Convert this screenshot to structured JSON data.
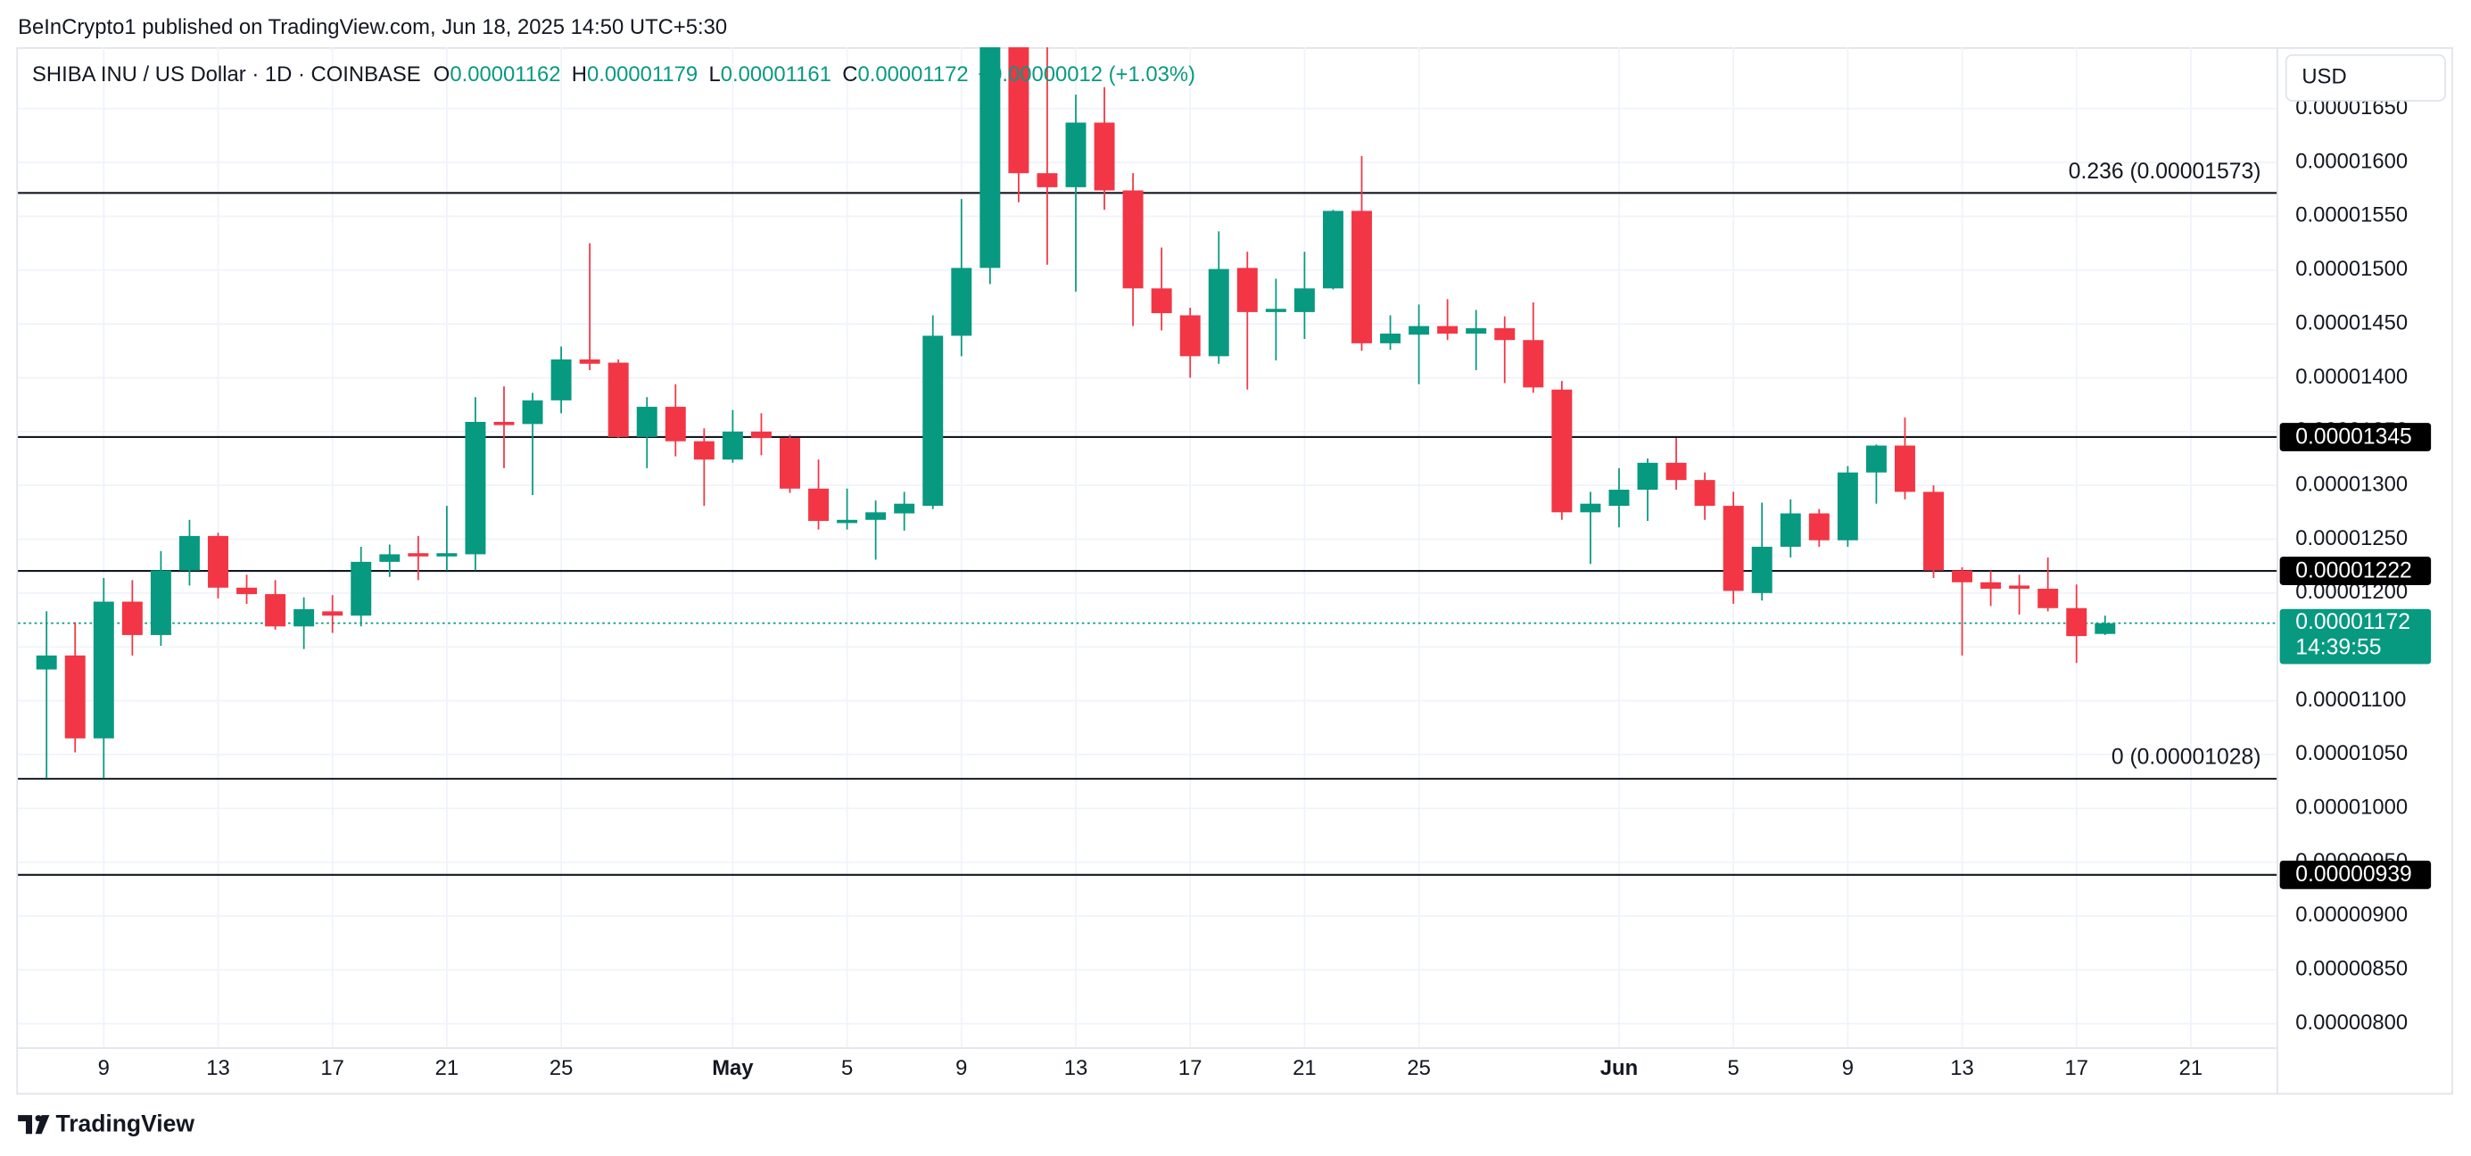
{
  "header": {
    "published": "BeInCrypto1 published on TradingView.com, Jun 18, 2025 14:50 UTC+5:30",
    "symbol": "SHIBA INU / US Dollar · 1D · COINBASE",
    "ohlc": [
      {
        "key": "O",
        "value": "0.00001162"
      },
      {
        "key": "H",
        "value": "0.00001179"
      },
      {
        "key": "L",
        "value": "0.00001161"
      },
      {
        "key": "C",
        "value": "0.00001172"
      }
    ],
    "change": "+0.00000012 (+1.03%)",
    "currency": "USD"
  },
  "footer": {
    "brand": "TradingView"
  },
  "chart_data": {
    "type": "candlestick",
    "up_color": "#089981",
    "down_color": "#f23645",
    "grid": true,
    "x": [
      "04-07",
      "04-08",
      "04-09",
      "04-10",
      "04-11",
      "04-12",
      "04-13",
      "04-14",
      "04-15",
      "04-16",
      "04-17",
      "04-18",
      "04-19",
      "04-20",
      "04-21",
      "04-22",
      "04-23",
      "04-24",
      "04-25",
      "04-26",
      "04-27",
      "04-28",
      "04-29",
      "04-30",
      "05-01",
      "05-02",
      "05-03",
      "05-04",
      "05-05",
      "05-06",
      "05-07",
      "05-08",
      "05-09",
      "05-10",
      "05-11",
      "05-12",
      "05-13",
      "05-14",
      "05-15",
      "05-16",
      "05-17",
      "05-18",
      "05-19",
      "05-20",
      "05-21",
      "05-22",
      "05-23",
      "05-24",
      "05-25",
      "05-26",
      "05-27",
      "05-28",
      "05-29",
      "05-30",
      "05-31",
      "06-01",
      "06-02",
      "06-03",
      "06-04",
      "06-05",
      "06-06",
      "06-07",
      "06-08",
      "06-09",
      "06-10",
      "06-11",
      "06-12",
      "06-13",
      "06-14",
      "06-15",
      "06-16",
      "06-17",
      "06-18"
    ],
    "open": [
      1.129e-05,
      1.142e-05,
      1.065e-05,
      1.192e-05,
      1.161e-05,
      1.221e-05,
      1.253e-05,
      1.205e-05,
      1.199e-05,
      1.169e-05,
      1.183e-05,
      1.179e-05,
      1.229e-05,
      1.237e-05,
      1.234e-05,
      1.236e-05,
      1.359e-05,
      1.357e-05,
      1.379e-05,
      1.417e-05,
      1.414e-05,
      1.345e-05,
      1.373e-05,
      1.341e-05,
      1.324e-05,
      1.35e-05,
      1.344e-05,
      1.297e-05,
      1.265e-05,
      1.268e-05,
      1.274e-05,
      1.281e-05,
      1.439e-05,
      1.502e-05,
      1.71e-05,
      1.59e-05,
      1.577e-05,
      1.637e-05,
      1.574e-05,
      1.483e-05,
      1.458e-05,
      1.42e-05,
      1.502e-05,
      1.461e-05,
      1.461e-05,
      1.483e-05,
      1.555e-05,
      1.432e-05,
      1.44e-05,
      1.448e-05,
      1.441e-05,
      1.446e-05,
      1.435e-05,
      1.389e-05,
      1.275e-05,
      1.281e-05,
      1.296e-05,
      1.321e-05,
      1.305e-05,
      1.281e-05,
      1.2e-05,
      1.243e-05,
      1.274e-05,
      1.249e-05,
      1.312e-05,
      1.337e-05,
      1.294e-05,
      1.221e-05,
      1.21e-05,
      1.207e-05,
      1.204e-05,
      1.186e-05,
      1.162e-05
    ],
    "high": [
      1.183e-05,
      1.173e-05,
      1.214e-05,
      1.212e-05,
      1.239e-05,
      1.268e-05,
      1.256e-05,
      1.217e-05,
      1.212e-05,
      1.196e-05,
      1.198e-05,
      1.243e-05,
      1.245e-05,
      1.253e-05,
      1.281e-05,
      1.382e-05,
      1.392e-05,
      1.386e-05,
      1.429e-05,
      1.525e-05,
      1.417e-05,
      1.382e-05,
      1.394e-05,
      1.353e-05,
      1.37e-05,
      1.367e-05,
      1.347e-05,
      1.324e-05,
      1.297e-05,
      1.286e-05,
      1.294e-05,
      1.458e-05,
      1.566e-05,
      1.74e-05,
      1.74e-05,
      1.72e-05,
      1.663e-05,
      1.67e-05,
      1.59e-05,
      1.521e-05,
      1.465e-05,
      1.536e-05,
      1.517e-05,
      1.492e-05,
      1.517e-05,
      1.556e-05,
      1.606e-05,
      1.458e-05,
      1.468e-05,
      1.473e-05,
      1.463e-05,
      1.457e-05,
      1.47e-05,
      1.397e-05,
      1.294e-05,
      1.316e-05,
      1.325e-05,
      1.344e-05,
      1.312e-05,
      1.294e-05,
      1.284e-05,
      1.287e-05,
      1.278e-05,
      1.318e-05,
      1.338e-05,
      1.363e-05,
      1.3e-05,
      1.224e-05,
      1.221e-05,
      1.217e-05,
      1.233e-05,
      1.208e-05,
      1.179e-05
    ],
    "low": [
      1.028e-05,
      1.052e-05,
      1.028e-05,
      1.142e-05,
      1.151e-05,
      1.207e-05,
      1.195e-05,
      1.19e-05,
      1.166e-05,
      1.148e-05,
      1.163e-05,
      1.169e-05,
      1.215e-05,
      1.212e-05,
      1.221e-05,
      1.221e-05,
      1.316e-05,
      1.291e-05,
      1.367e-05,
      1.407e-05,
      1.344e-05,
      1.316e-05,
      1.327e-05,
      1.281e-05,
      1.321e-05,
      1.328e-05,
      1.293e-05,
      1.259e-05,
      1.259e-05,
      1.231e-05,
      1.258e-05,
      1.278e-05,
      1.42e-05,
      1.487e-05,
      1.563e-05,
      1.505e-05,
      1.48e-05,
      1.556e-05,
      1.448e-05,
      1.444e-05,
      1.4e-05,
      1.413e-05,
      1.389e-05,
      1.416e-05,
      1.436e-05,
      1.482e-05,
      1.425e-05,
      1.426e-05,
      1.394e-05,
      1.435e-05,
      1.407e-05,
      1.395e-05,
      1.386e-05,
      1.268e-05,
      1.227e-05,
      1.261e-05,
      1.267e-05,
      1.296e-05,
      1.268e-05,
      1.19e-05,
      1.193e-05,
      1.233e-05,
      1.243e-05,
      1.243e-05,
      1.283e-05,
      1.287e-05,
      1.214e-05,
      1.142e-05,
      1.188e-05,
      1.18e-05,
      1.183e-05,
      1.135e-05,
      1.161e-05
    ],
    "close": [
      1.142e-05,
      1.065e-05,
      1.192e-05,
      1.161e-05,
      1.221e-05,
      1.253e-05,
      1.205e-05,
      1.199e-05,
      1.169e-05,
      1.185e-05,
      1.179e-05,
      1.229e-05,
      1.236e-05,
      1.234e-05,
      1.237e-05,
      1.359e-05,
      1.356e-05,
      1.379e-05,
      1.417e-05,
      1.413e-05,
      1.345e-05,
      1.373e-05,
      1.341e-05,
      1.324e-05,
      1.35e-05,
      1.344e-05,
      1.297e-05,
      1.267e-05,
      1.268e-05,
      1.275e-05,
      1.283e-05,
      1.439e-05,
      1.502e-05,
      1.71e-05,
      1.59e-05,
      1.577e-05,
      1.637e-05,
      1.574e-05,
      1.483e-05,
      1.46e-05,
      1.42e-05,
      1.501e-05,
      1.461e-05,
      1.464e-05,
      1.483e-05,
      1.555e-05,
      1.432e-05,
      1.441e-05,
      1.448e-05,
      1.441e-05,
      1.446e-05,
      1.435e-05,
      1.391e-05,
      1.275e-05,
      1.283e-05,
      1.296e-05,
      1.321e-05,
      1.305e-05,
      1.281e-05,
      1.202e-05,
      1.243e-05,
      1.274e-05,
      1.249e-05,
      1.312e-05,
      1.337e-05,
      1.294e-05,
      1.221e-05,
      1.21e-05,
      1.204e-05,
      1.204e-05,
      1.186e-05,
      1.16e-05,
      1.172e-05
    ],
    "xlim": [
      "04-06",
      "06-24"
    ],
    "xticks": [
      {
        "value": "04-09",
        "label": "9"
      },
      {
        "value": "04-13",
        "label": "13"
      },
      {
        "value": "04-17",
        "label": "17"
      },
      {
        "value": "04-21",
        "label": "21"
      },
      {
        "value": "04-25",
        "label": "25"
      },
      {
        "value": "05-01",
        "label": "May"
      },
      {
        "value": "05-05",
        "label": "5"
      },
      {
        "value": "05-09",
        "label": "9"
      },
      {
        "value": "05-13",
        "label": "13"
      },
      {
        "value": "05-17",
        "label": "17"
      },
      {
        "value": "05-21",
        "label": "21"
      },
      {
        "value": "05-25",
        "label": "25"
      },
      {
        "value": "06-01",
        "label": "Jun"
      },
      {
        "value": "06-05",
        "label": "5"
      },
      {
        "value": "06-09",
        "label": "9"
      },
      {
        "value": "06-13",
        "label": "13"
      },
      {
        "value": "06-17",
        "label": "17"
      },
      {
        "value": "06-21",
        "label": "21"
      }
    ],
    "ylim": [
      7.78e-06,
      1.707e-05
    ],
    "yticks": [
      {
        "value": 8e-06,
        "label": "0.00000800"
      },
      {
        "value": 8.5e-06,
        "label": "0.00000850"
      },
      {
        "value": 9e-06,
        "label": "0.00000900"
      },
      {
        "value": 9.5e-06,
        "label": "0.00000950"
      },
      {
        "value": 1e-05,
        "label": "0.00001000"
      },
      {
        "value": 1.05e-05,
        "label": "0.00001050"
      },
      {
        "value": 1.1e-05,
        "label": "0.00001100"
      },
      {
        "value": 1.15e-05,
        "label": "0.00001150"
      },
      {
        "value": 1.2e-05,
        "label": "0.00001200"
      },
      {
        "value": 1.25e-05,
        "label": "0.00001250"
      },
      {
        "value": 1.3e-05,
        "label": "0.00001300"
      },
      {
        "value": 1.35e-05,
        "label": "0.00001350"
      },
      {
        "value": 1.4e-05,
        "label": "0.00001400"
      },
      {
        "value": 1.45e-05,
        "label": "0.00001450"
      },
      {
        "value": 1.5e-05,
        "label": "0.00001500"
      },
      {
        "value": 1.55e-05,
        "label": "0.00001550"
      },
      {
        "value": 1.6e-05,
        "label": "0.00001600"
      },
      {
        "value": 1.65e-05,
        "label": "0.00001650"
      }
    ],
    "levels": [
      {
        "value": 1.573e-05,
        "label": "0.236 (0.00001573)",
        "style": "fib"
      },
      {
        "value": 1.028e-05,
        "label": "0 (0.00001028)",
        "style": "fib"
      },
      {
        "value": 1.345e-05,
        "label": "0.00001345",
        "style": "tag"
      },
      {
        "value": 1.222e-05,
        "label": "0.00001222",
        "style": "tag"
      },
      {
        "value": 9.39e-06,
        "label": "0.00000939",
        "style": "tag"
      }
    ],
    "last_price": {
      "value": 1.172e-05,
      "label": "0.00001172",
      "countdown": "14:39:55"
    }
  }
}
